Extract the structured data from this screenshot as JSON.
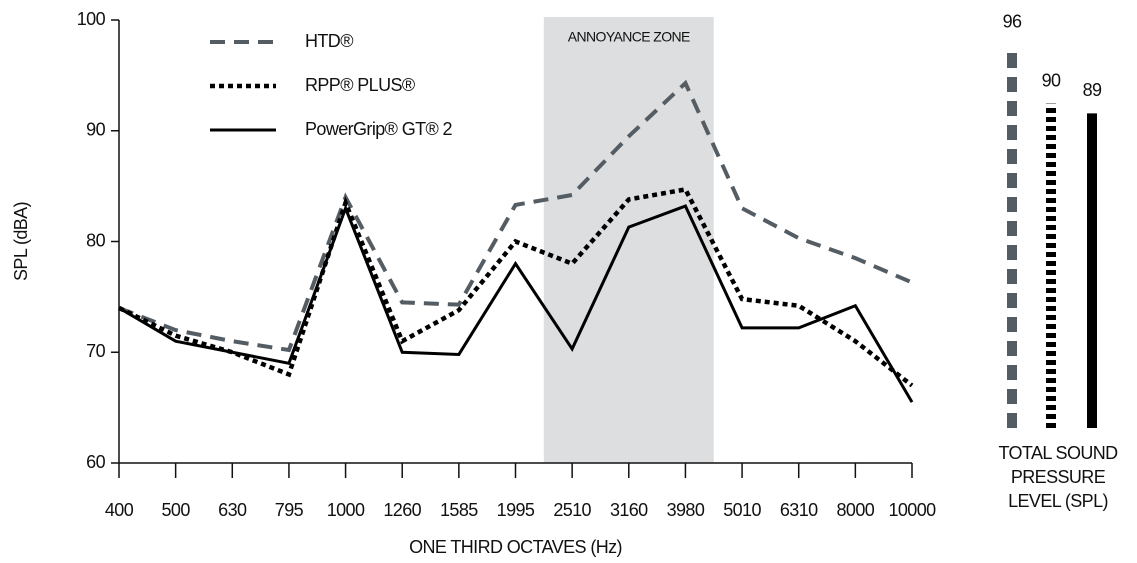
{
  "chart_data": [
    {
      "type": "line",
      "ylabel": "SPL (dBA)",
      "xlabel": "ONE THIRD OCTAVES (Hz)",
      "categories": [
        "400",
        "500",
        "630",
        "795",
        "1000",
        "1260",
        "1585",
        "1995",
        "2510",
        "3160",
        "3980",
        "5010",
        "6310",
        "8000",
        "10000"
      ],
      "ylim": [
        60,
        100
      ],
      "yticks": [
        60,
        70,
        80,
        90,
        100
      ],
      "legend": "upper left",
      "annotations": [
        {
          "text": "ANNOYANCE ZONE",
          "from": "2510",
          "to": "3980",
          "color": "#dcdedf"
        }
      ],
      "series": [
        {
          "name": "HTD®",
          "color": "#555d64",
          "style": "dashed",
          "values": [
            74,
            72,
            71,
            70.2,
            84,
            74.5,
            74.3,
            83.3,
            84.2,
            89.5,
            94.3,
            83,
            80.3,
            78.5,
            76.3
          ]
        },
        {
          "name": "RPP® PLUS®",
          "color": "#000000",
          "style": "dotted",
          "values": [
            74,
            71.5,
            70,
            68,
            83.5,
            71,
            73.8,
            80,
            78,
            83.8,
            84.7,
            74.8,
            74.2,
            71,
            67
          ]
        },
        {
          "name": "PowerGrip® GT® 2",
          "color": "#000000",
          "style": "solid",
          "values": [
            74,
            71,
            70,
            69,
            83,
            70,
            69.8,
            78,
            70.3,
            81.3,
            83.2,
            72.2,
            72.2,
            74.2,
            65.5
          ]
        }
      ]
    },
    {
      "type": "bar",
      "xlabel": [
        "TOTAL SOUND",
        "PRESSURE",
        "LEVEL (SPL)"
      ],
      "ylim": [
        57,
        98.5
      ],
      "values": [
        96,
        90,
        89
      ],
      "colors": [
        "#555d64",
        "#000000",
        "#000000"
      ],
      "styles": [
        "dashed",
        "dotted",
        "solid"
      ]
    }
  ]
}
